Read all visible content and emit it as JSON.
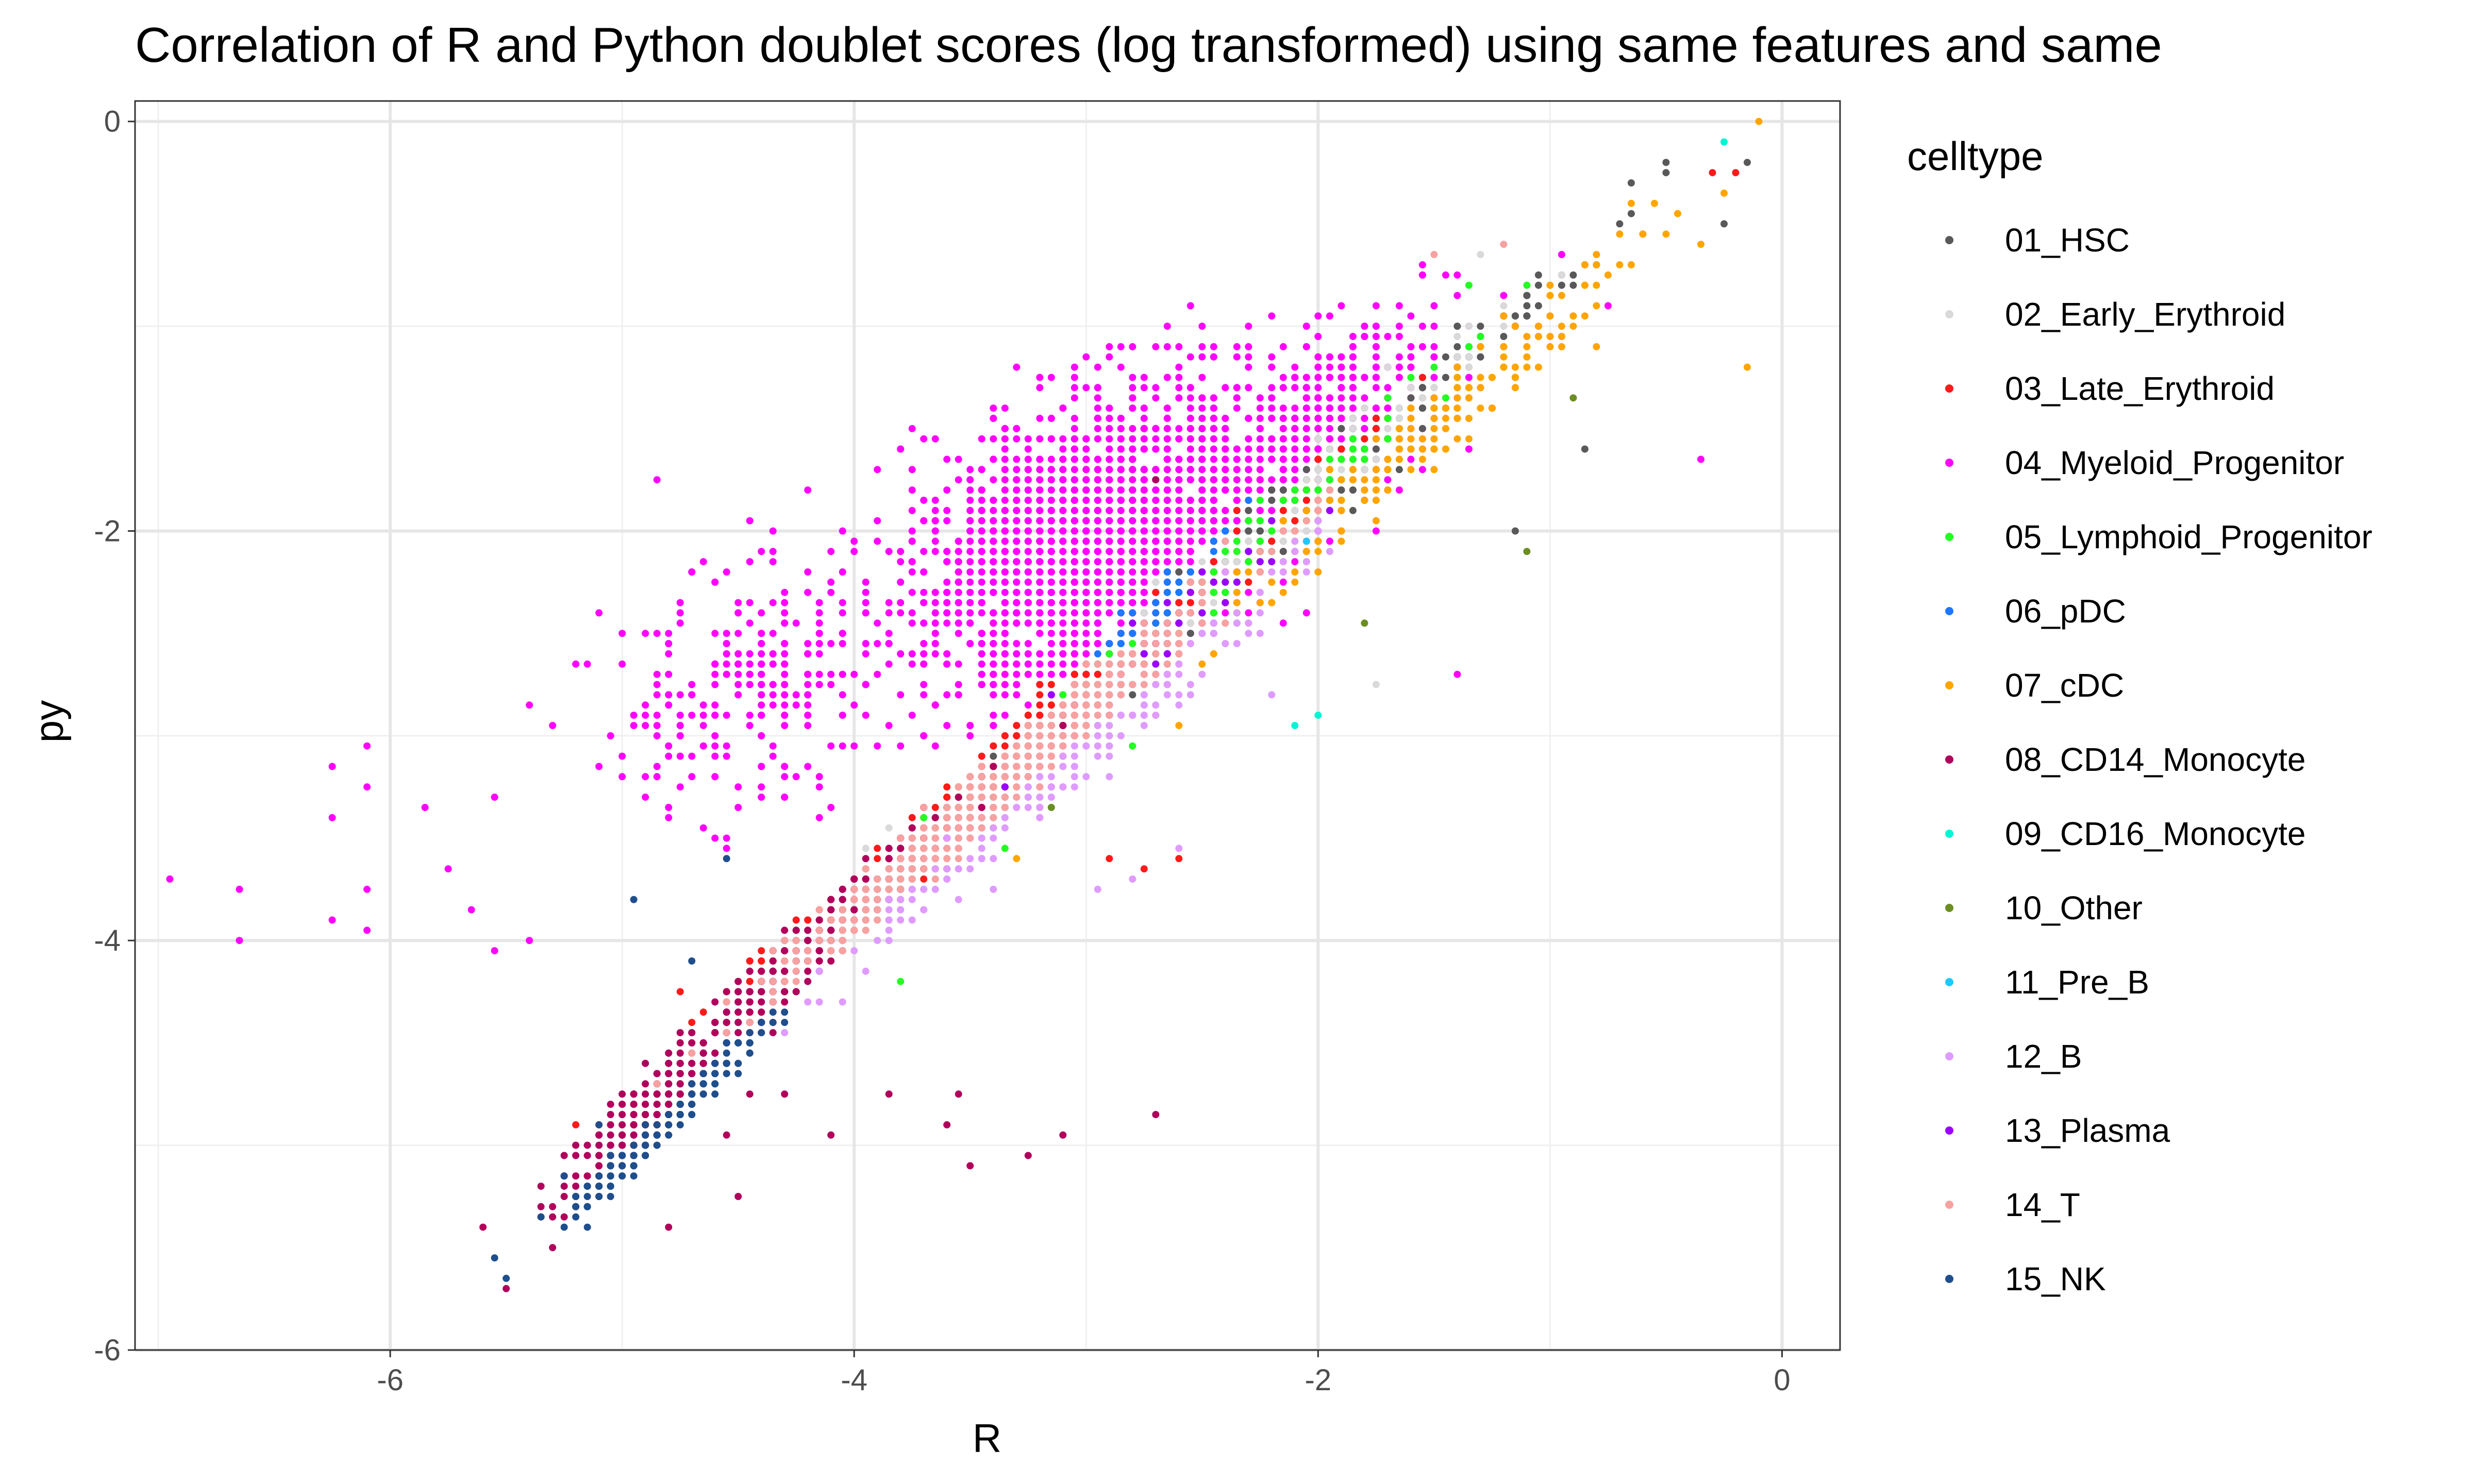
{
  "chart_data": {
    "type": "scatter",
    "title": "Correlation of R and Python doublet scores (log transformed) using same features and same",
    "xlabel": "R",
    "ylabel": "py",
    "xlim": [
      -7.1,
      0.25
    ],
    "ylim": [
      -6.0,
      0.1
    ],
    "x_ticks": [
      -6,
      -4,
      -2,
      0
    ],
    "y_ticks": [
      0,
      -2,
      -4,
      -6
    ],
    "x_tick_labels": [
      "-6",
      "-4",
      "-2",
      "0"
    ],
    "y_tick_labels": [
      "0",
      "-2",
      "-4",
      "-6"
    ],
    "grid": true,
    "legend_position": "right",
    "legend": {
      "title": "celltype",
      "entries": [
        {
          "label": "01_HSC",
          "color": "#595959"
        },
        {
          "label": "02_Early_Erythroid",
          "color": "#d9d9d9"
        },
        {
          "label": "03_Late_Erythroid",
          "color": "#ff1a1a"
        },
        {
          "label": "04_Myeloid_Progenitor",
          "color": "#ff00ff"
        },
        {
          "label": "05_Lymphoid_Progenitor",
          "color": "#22ff22"
        },
        {
          "label": "06_pDC",
          "color": "#1e78ff"
        },
        {
          "label": "07_cDC",
          "color": "#ffa500"
        },
        {
          "label": "08_CD14_Monocyte",
          "color": "#b0005c"
        },
        {
          "label": "09_CD16_Monocyte",
          "color": "#00f5d4"
        },
        {
          "label": "10_Other",
          "color": "#6b8e23"
        },
        {
          "label": "11_Pre_B",
          "color": "#1ec8ff"
        },
        {
          "label": "12_B",
          "color": "#df9bff"
        },
        {
          "label": "13_Plasma",
          "color": "#9b00ff"
        },
        {
          "label": "14_T",
          "color": "#f7a1a1"
        },
        {
          "label": "15_NK",
          "color": "#1f4e8c"
        }
      ]
    },
    "series": [
      {
        "name": "04_Myeloid_Progenitor",
        "points": [
          [
            -6.95,
            -3.7
          ],
          [
            -6.65,
            -3.75
          ],
          [
            -6.65,
            -4.0
          ],
          [
            -6.25,
            -3.15
          ],
          [
            -6.25,
            -3.4
          ],
          [
            -6.25,
            -3.9
          ],
          [
            -6.1,
            -3.05
          ],
          [
            -6.1,
            -3.25
          ],
          [
            -6.1,
            -3.75
          ],
          [
            -6.1,
            -3.95
          ],
          [
            -5.85,
            -3.35
          ],
          [
            -5.75,
            -3.65
          ],
          [
            -5.65,
            -3.85
          ],
          [
            -5.55,
            -3.3
          ],
          [
            -5.55,
            -4.05
          ],
          [
            -5.4,
            -2.85
          ],
          [
            -5.4,
            -4.0
          ],
          [
            -5.3,
            -2.95
          ],
          [
            -5.2,
            -2.65
          ],
          [
            -5.1,
            -2.4
          ],
          [
            -5.0,
            -3.1
          ],
          [
            -4.85,
            -1.75
          ],
          [
            -4.7,
            -2.75
          ],
          [
            -4.6,
            -2.25
          ],
          [
            -4.45,
            -1.95
          ],
          [
            -4.35,
            -2.1
          ],
          [
            -4.2,
            -1.8
          ],
          [
            -4.05,
            -2.55
          ],
          [
            -3.8,
            -1.6
          ],
          [
            -3.65,
            -1.55
          ],
          [
            -3.6,
            -1.9
          ],
          [
            -3.5,
            -2.25
          ],
          [
            -3.3,
            -1.2
          ],
          [
            -3.05,
            -1.2
          ],
          [
            -2.9,
            -1.15
          ],
          [
            -2.8,
            -1.7
          ],
          [
            -2.65,
            -1.0
          ],
          [
            -2.5,
            -1.55
          ],
          [
            -2.35,
            -1.1
          ],
          [
            -2.1,
            -1.45
          ],
          [
            -1.95,
            -0.95
          ],
          [
            -1.75,
            -1.05
          ],
          [
            -1.55,
            -0.75
          ],
          [
            -1.4,
            -0.75
          ],
          [
            -1.2,
            -0.85
          ],
          [
            -0.95,
            -0.65
          ],
          [
            -0.75,
            -0.9
          ],
          [
            -0.35,
            -1.65
          ],
          [
            -1.4,
            -2.7
          ]
        ],
        "clusters": [
          {
            "cx": -3.0,
            "cy": -2.05,
            "sx": 0.55,
            "sy": 0.42,
            "n": 1900,
            "rot": 0.38
          },
          {
            "cx": -4.4,
            "cy": -2.8,
            "sx": 0.45,
            "sy": 0.4,
            "n": 260,
            "rot": 0.4
          },
          {
            "cx": -1.9,
            "cy": -1.45,
            "sx": 0.4,
            "sy": 0.28,
            "n": 450,
            "rot": 0.5
          }
        ]
      },
      {
        "name": "01_HSC",
        "clusters": [
          {
            "cx": -2.1,
            "cy": -1.9,
            "sx": 0.8,
            "sy": 0.11,
            "n": 330
          }
        ],
        "points": [
          [
            -0.15,
            -0.2
          ],
          [
            -0.25,
            -0.5
          ],
          [
            -0.6,
            -0.55
          ],
          [
            -0.85,
            -1.6
          ],
          [
            -1.15,
            -2.0
          ],
          [
            -2.6,
            -2.2
          ]
        ]
      },
      {
        "name": "02_Early_Erythroid",
        "clusters": [
          {
            "cx": -2.5,
            "cy": -2.3,
            "sx": 0.9,
            "sy": 0.12,
            "n": 260
          }
        ],
        "points": [
          [
            -1.3,
            -0.65
          ],
          [
            -1.75,
            -2.75
          ],
          [
            -3.95,
            -3.55
          ]
        ]
      },
      {
        "name": "03_Late_Erythroid",
        "clusters": [
          {
            "cx": -3.3,
            "cy": -3.1,
            "sx": 0.9,
            "sy": 0.11,
            "n": 520
          }
        ],
        "points": [
          [
            -0.3,
            -0.25
          ],
          [
            -0.2,
            -0.25
          ],
          [
            -2.9,
            -3.6
          ],
          [
            -2.75,
            -3.65
          ],
          [
            -2.6,
            -3.6
          ],
          [
            -4.75,
            -4.25
          ]
        ]
      },
      {
        "name": "05_Lymphoid_Progenitor",
        "clusters": [
          {
            "cx": -2.4,
            "cy": -2.2,
            "sx": 0.9,
            "sy": 0.12,
            "n": 110
          }
        ],
        "points": [
          [
            -1.35,
            -0.8
          ],
          [
            -2.8,
            -3.05
          ],
          [
            -3.35,
            -3.55
          ],
          [
            -3.8,
            -4.2
          ],
          [
            -4.05,
            -3.85
          ]
        ]
      },
      {
        "name": "06_pDC",
        "clusters": [
          {
            "cx": -2.7,
            "cy": -2.35,
            "sx": 0.25,
            "sy": 0.08,
            "n": 35
          }
        ],
        "points": []
      },
      {
        "name": "07_cDC",
        "clusters": [
          {
            "cx": -1.6,
            "cy": -1.6,
            "sx": 0.7,
            "sy": 0.14,
            "n": 220
          }
        ],
        "points": [
          [
            -0.45,
            -0.45
          ],
          [
            -0.35,
            -0.6
          ],
          [
            -0.15,
            -1.2
          ],
          [
            -2.6,
            -2.95
          ],
          [
            -3.3,
            -3.6
          ]
        ]
      },
      {
        "name": "08_CD14_Monocyte",
        "clusters": [
          {
            "cx": -4.2,
            "cy": -4.05,
            "sx": 0.65,
            "sy": 0.1,
            "n": 520
          },
          {
            "cx": -4.85,
            "cy": -4.85,
            "sx": 0.3,
            "sy": 0.07,
            "n": 170
          }
        ],
        "points": [
          [
            -5.5,
            -5.7
          ],
          [
            -5.3,
            -5.5
          ],
          [
            -4.8,
            -5.4
          ],
          [
            -4.5,
            -5.25
          ],
          [
            -4.45,
            -4.75
          ],
          [
            -4.3,
            -4.75
          ],
          [
            -4.1,
            -4.95
          ],
          [
            -3.85,
            -4.75
          ],
          [
            -3.6,
            -4.9
          ],
          [
            -3.55,
            -4.75
          ],
          [
            -3.5,
            -5.1
          ],
          [
            -3.25,
            -5.05
          ],
          [
            -3.1,
            -4.95
          ],
          [
            -2.7,
            -4.85
          ],
          [
            -4.55,
            -4.95
          ],
          [
            -2.7,
            -1.75
          ]
        ]
      },
      {
        "name": "09_CD16_Monocyte",
        "clusters": [],
        "points": [
          [
            -0.25,
            -0.1
          ],
          [
            -2.0,
            -2.9
          ],
          [
            -2.1,
            -2.95
          ],
          [
            -2.65,
            -2.65
          ]
        ]
      },
      {
        "name": "10_Other",
        "clusters": [],
        "points": [
          [
            -1.1,
            -2.1
          ],
          [
            -0.9,
            -1.35
          ],
          [
            -1.8,
            -2.45
          ],
          [
            -3.15,
            -3.35
          ]
        ]
      },
      {
        "name": "11_Pre_B",
        "clusters": [],
        "points": [
          [
            -2.35,
            -2.45
          ],
          [
            -2.05,
            -2.05
          ]
        ]
      },
      {
        "name": "12_B",
        "clusters": [
          {
            "cx": -3.1,
            "cy": -3.15,
            "sx": 0.7,
            "sy": 0.13,
            "n": 240
          }
        ],
        "points": [
          [
            -2.95,
            -3.75
          ],
          [
            -2.8,
            -3.7
          ],
          [
            -2.6,
            -3.55
          ],
          [
            -3.4,
            -3.75
          ],
          [
            -2.2,
            -2.8
          ]
        ]
      },
      {
        "name": "13_Plasma",
        "clusters": [
          {
            "cx": -2.7,
            "cy": -2.55,
            "sx": 0.5,
            "sy": 0.1,
            "n": 70
          }
        ],
        "points": []
      },
      {
        "name": "14_T",
        "clusters": [
          {
            "cx": -3.4,
            "cy": -3.25,
            "sx": 0.75,
            "sy": 0.11,
            "n": 420
          }
        ],
        "points": [
          [
            -1.5,
            -0.65
          ],
          [
            -1.2,
            -0.6
          ]
        ]
      },
      {
        "name": "15_NK",
        "clusters": [
          {
            "cx": -4.95,
            "cy": -5.05,
            "sx": 0.25,
            "sy": 0.06,
            "n": 130
          },
          {
            "cx": -4.6,
            "cy": -4.65,
            "sx": 0.2,
            "sy": 0.06,
            "n": 60
          }
        ],
        "points": [
          [
            -5.55,
            -5.55
          ],
          [
            -5.35,
            -5.35
          ],
          [
            -5.25,
            -5.15
          ],
          [
            -5.1,
            -4.9
          ],
          [
            -4.95,
            -3.8
          ],
          [
            -4.55,
            -3.6
          ],
          [
            -4.7,
            -4.1
          ]
        ]
      }
    ]
  }
}
